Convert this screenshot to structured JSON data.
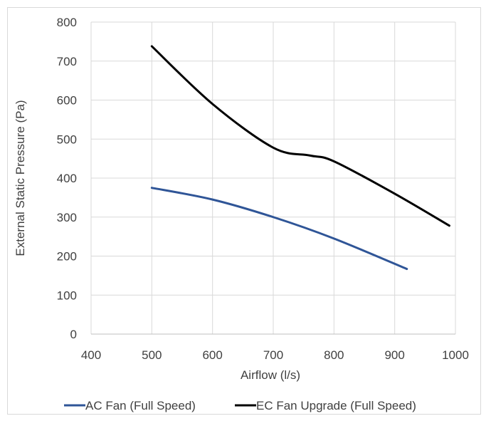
{
  "chart_data": {
    "type": "line",
    "title": "",
    "xlabel": "Airflow (l/s)",
    "ylabel": "External Static Pressure (Pa)",
    "xlim": [
      400,
      1000
    ],
    "ylim": [
      0,
      800
    ],
    "xticks": [
      400,
      500,
      600,
      700,
      800,
      900,
      1000
    ],
    "yticks": [
      0,
      100,
      200,
      300,
      400,
      500,
      600,
      700,
      800
    ],
    "grid": true,
    "legend_position": "bottom",
    "series": [
      {
        "name": "AC Fan (Full Speed)",
        "color": "#2f5597",
        "x": [
          500,
          600,
          700,
          800,
          920
        ],
        "y": [
          375,
          345,
          300,
          245,
          167
        ]
      },
      {
        "name": "EC Fan Upgrade (Full Speed)",
        "color": "#000000",
        "x": [
          500,
          600,
          700,
          760,
          800,
          900,
          990
        ],
        "y": [
          738,
          590,
          478,
          458,
          443,
          360,
          278
        ]
      }
    ]
  }
}
